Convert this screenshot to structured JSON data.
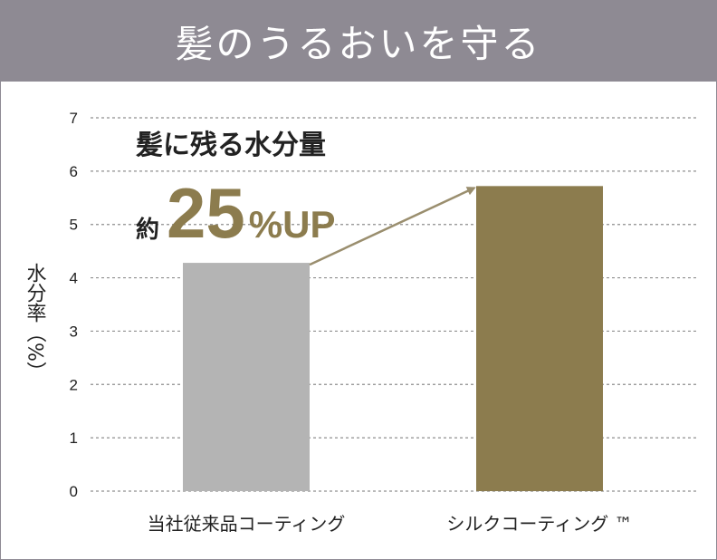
{
  "header": {
    "title": "髪のうるおいを守る"
  },
  "colors": {
    "header_bg": "#8e8a93",
    "bar_conventional": "#b4b4b4",
    "bar_silk": "#8c7c4e",
    "arrow": "#9a8e6e",
    "grid": "#8f8f8f"
  },
  "chart_data": {
    "type": "bar",
    "categories": [
      "当社従来品コーティング",
      "シルクコーティング ™"
    ],
    "values": [
      4.28,
      5.72
    ],
    "ylabel": "水分率（%）",
    "ylim": [
      0,
      7
    ],
    "yticks": [
      "0",
      "1",
      "2",
      "3",
      "4",
      "5",
      "6",
      "7"
    ],
    "grid": true,
    "annotation": {
      "line1": "髪に残る水分量",
      "prefix": "約",
      "value": "25",
      "suffix": "%UP"
    }
  }
}
